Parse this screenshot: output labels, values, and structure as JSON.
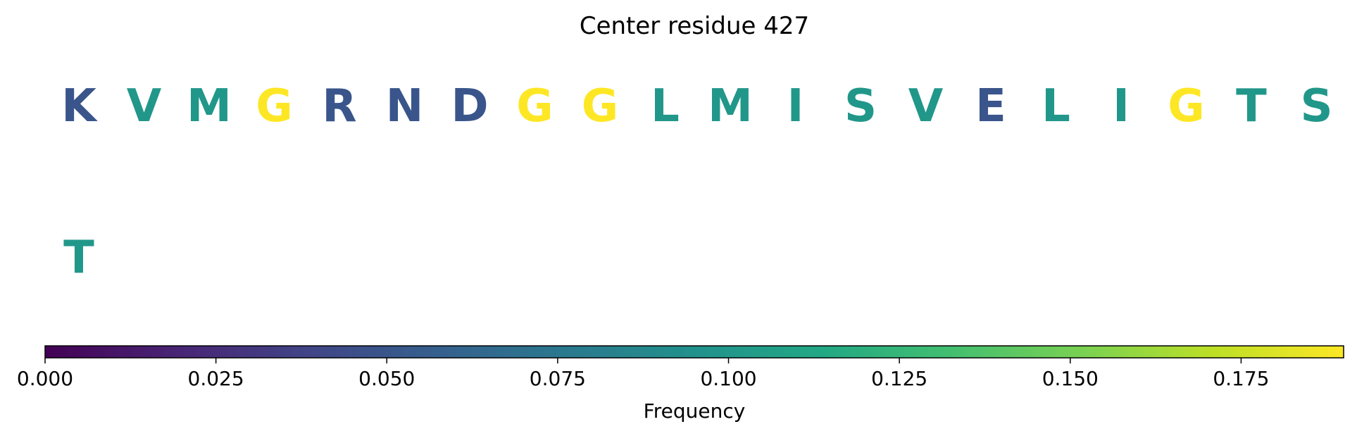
{
  "chart_data": {
    "type": "table",
    "title": "Center residue 427",
    "layout": "grid of residue letters, 20 per row, colored by frequency",
    "residues": [
      {
        "letter": "K",
        "frequency": 0.05
      },
      {
        "letter": "V",
        "frequency": 0.1
      },
      {
        "letter": "M",
        "frequency": 0.1
      },
      {
        "letter": "G",
        "frequency": 0.19
      },
      {
        "letter": "R",
        "frequency": 0.05
      },
      {
        "letter": "N",
        "frequency": 0.05
      },
      {
        "letter": "D",
        "frequency": 0.05
      },
      {
        "letter": "G",
        "frequency": 0.19
      },
      {
        "letter": "G",
        "frequency": 0.19
      },
      {
        "letter": "L",
        "frequency": 0.1
      },
      {
        "letter": "M",
        "frequency": 0.1
      },
      {
        "letter": "I",
        "frequency": 0.1
      },
      {
        "letter": "S",
        "frequency": 0.1
      },
      {
        "letter": "V",
        "frequency": 0.1
      },
      {
        "letter": "E",
        "frequency": 0.05
      },
      {
        "letter": "L",
        "frequency": 0.1
      },
      {
        "letter": "I",
        "frequency": 0.1
      },
      {
        "letter": "G",
        "frequency": 0.19
      },
      {
        "letter": "T",
        "frequency": 0.1
      },
      {
        "letter": "S",
        "frequency": 0.1
      },
      {
        "letter": "T",
        "frequency": 0.1
      }
    ],
    "colorbar": {
      "colormap": "viridis",
      "orientation": "horizontal",
      "placement": "bottom",
      "range": [
        0,
        0.19
      ],
      "ticks": [
        0,
        0.025,
        0.05,
        0.075,
        0.1,
        0.125,
        0.15,
        0.175
      ],
      "tick_labels": [
        "0.000",
        "0.025",
        "0.050",
        "0.075",
        "0.100",
        "0.125",
        "0.150",
        "0.175"
      ],
      "label": "Frequency"
    }
  }
}
